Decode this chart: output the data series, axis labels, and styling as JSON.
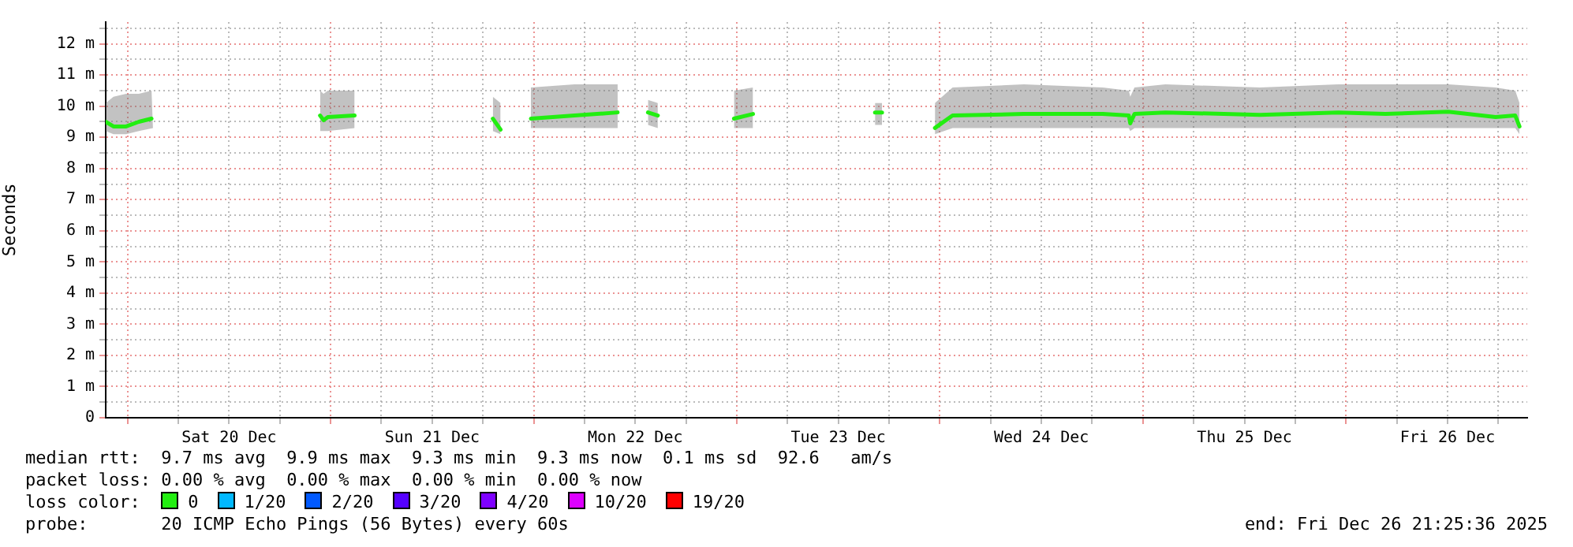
{
  "chart_data": {
    "type": "line",
    "ylabel": "Seconds",
    "legend_title": "loss color:",
    "legend": "bottom",
    "grid": true,
    "marker": "none",
    "line_style": "solid",
    "xlim": [
      "2025-12-19T21:25",
      "2025-12-26T21:25"
    ],
    "xticks": [
      {
        "value": "2025-12-20T00:00",
        "label": null
      },
      {
        "value": "2025-12-20T06:00",
        "label": null
      },
      {
        "value": "2025-12-20T12:00",
        "label": "Sat 20 Dec"
      },
      {
        "value": "2025-12-20T18:00",
        "label": null
      },
      {
        "value": "2025-12-21T00:00",
        "label": null
      },
      {
        "value": "2025-12-21T06:00",
        "label": null
      },
      {
        "value": "2025-12-21T12:00",
        "label": "Sun 21 Dec"
      },
      {
        "value": "2025-12-21T18:00",
        "label": null
      },
      {
        "value": "2025-12-22T00:00",
        "label": null
      },
      {
        "value": "2025-12-22T06:00",
        "label": null
      },
      {
        "value": "2025-12-22T12:00",
        "label": "Mon 22 Dec"
      },
      {
        "value": "2025-12-22T18:00",
        "label": null
      },
      {
        "value": "2025-12-23T00:00",
        "label": null
      },
      {
        "value": "2025-12-23T06:00",
        "label": null
      },
      {
        "value": "2025-12-23T12:00",
        "label": "Tue 23 Dec"
      },
      {
        "value": "2025-12-23T18:00",
        "label": null
      },
      {
        "value": "2025-12-24T00:00",
        "label": null
      },
      {
        "value": "2025-12-24T06:00",
        "label": null
      },
      {
        "value": "2025-12-24T12:00",
        "label": "Wed 24 Dec"
      },
      {
        "value": "2025-12-24T18:00",
        "label": null
      },
      {
        "value": "2025-12-25T00:00",
        "label": null
      },
      {
        "value": "2025-12-25T06:00",
        "label": null
      },
      {
        "value": "2025-12-25T12:00",
        "label": "Thu 25 Dec"
      },
      {
        "value": "2025-12-25T18:00",
        "label": null
      },
      {
        "value": "2025-12-26T00:00",
        "label": null
      },
      {
        "value": "2025-12-26T06:00",
        "label": null
      },
      {
        "value": "2025-12-26T12:00",
        "label": "Fri 26 Dec"
      },
      {
        "value": "2025-12-26T18:00",
        "label": null
      }
    ],
    "ylim": [
      0,
      12.7
    ],
    "yticks": [
      0,
      {
        "value": 0.5,
        "label": null
      },
      {
        "value": 1,
        "label": "1 m"
      },
      {
        "value": 1.5,
        "label": null
      },
      {
        "value": 2,
        "label": "2 m"
      },
      {
        "value": 2.5,
        "label": null
      },
      {
        "value": 3,
        "label": "3 m"
      },
      {
        "value": 3.5,
        "label": null
      },
      {
        "value": 4,
        "label": "4 m"
      },
      {
        "value": 4.5,
        "label": null
      },
      {
        "value": 5,
        "label": "5 m"
      },
      {
        "value": 5.5,
        "label": null
      },
      {
        "value": 6,
        "label": "6 m"
      },
      {
        "value": 6.5,
        "label": null
      },
      {
        "value": 7,
        "label": "7 m"
      },
      {
        "value": 7.5,
        "label": null
      },
      {
        "value": 8,
        "label": "8 m"
      },
      {
        "value": 8.5,
        "label": null
      },
      {
        "value": 9,
        "label": "9 m"
      },
      {
        "value": 9.5,
        "label": null
      },
      {
        "value": 10,
        "label": "10 m"
      },
      {
        "value": 10.5,
        "label": null
      },
      {
        "value": 11,
        "label": "11 m"
      },
      {
        "value": 11.5,
        "label": null
      },
      {
        "value": 12,
        "label": "12 m"
      },
      {
        "value": 12.5,
        "label": null
      }
    ],
    "series": [
      {
        "name": "0",
        "color": "#22ee11",
        "x": [
          "2025-12-19T21:25",
          "2025-12-19T22:20",
          "2025-12-19T23:50",
          "2025-12-20T01:20",
          "2025-12-20T02:50",
          "2025-12-20T03:00",
          "2025-12-20T12:00",
          "2025-12-20T22:45",
          "2025-12-20T23:10",
          "2025-12-20T23:40",
          "2025-12-21T02:50",
          "2025-12-21T10:00",
          "2025-12-21T19:10",
          "2025-12-21T20:05",
          "2025-12-21T22:00",
          "2025-12-21T23:40",
          "2025-12-22T04:50",
          "2025-12-22T09:55",
          "2025-12-22T12:00",
          "2025-12-22T13:30",
          "2025-12-22T14:40",
          "2025-12-22T18:00",
          "2025-12-22T23:40",
          "2025-12-23T01:55",
          "2025-12-23T08:00",
          "2025-12-23T16:20",
          "2025-12-23T17:10",
          "2025-12-23T20:00",
          "2025-12-23T23:25",
          "2025-12-24T01:30",
          "2025-12-24T09:55",
          "2025-12-24T19:15",
          "2025-12-24T22:20",
          "2025-12-24T22:30",
          "2025-12-24T23:00",
          "2025-12-25T02:40",
          "2025-12-25T13:50",
          "2025-12-25T23:05",
          "2025-12-26T04:40",
          "2025-12-26T12:05",
          "2025-12-26T17:40",
          "2025-12-26T20:00",
          "2025-12-26T20:30"
        ],
        "values": [
          9.5,
          9.35,
          9.35,
          9.5,
          9.6,
          9.6,
          null,
          9.7,
          9.55,
          9.65,
          9.7,
          null,
          9.6,
          9.25,
          null,
          9.6,
          9.7,
          9.8,
          null,
          9.8,
          9.7,
          null,
          9.6,
          9.75,
          null,
          9.8,
          9.8,
          null,
          9.3,
          9.7,
          9.75,
          9.75,
          9.7,
          9.45,
          9.75,
          9.8,
          9.72,
          9.8,
          9.75,
          9.82,
          9.65,
          9.7,
          9.35
        ],
        "lower": [
          9.2,
          9.1,
          9.1,
          9.2,
          9.3,
          9.3,
          null,
          9.2,
          9.2,
          9.2,
          9.3,
          null,
          9.2,
          9.1,
          null,
          9.3,
          9.3,
          9.3,
          null,
          9.4,
          9.3,
          null,
          9.3,
          9.3,
          null,
          9.4,
          9.4,
          null,
          9.1,
          9.3,
          9.3,
          9.3,
          9.3,
          9.2,
          9.3,
          9.3,
          9.3,
          9.3,
          9.3,
          9.3,
          9.3,
          9.3,
          9.1
        ],
        "upper": [
          10.1,
          10.3,
          10.4,
          10.4,
          10.5,
          10.5,
          null,
          10.5,
          10.4,
          10.5,
          10.5,
          null,
          10.3,
          10.1,
          null,
          10.6,
          10.7,
          10.7,
          null,
          10.2,
          10.1,
          null,
          10.5,
          10.6,
          null,
          10.1,
          10.1,
          null,
          10.1,
          10.6,
          10.7,
          10.6,
          10.5,
          10.3,
          10.6,
          10.7,
          10.6,
          10.7,
          10.7,
          10.7,
          10.6,
          10.5,
          10.1
        ]
      },
      {
        "name": "1/20",
        "color": "#00b8ff"
      },
      {
        "name": "2/20",
        "color": "#0059ff"
      },
      {
        "name": "3/20",
        "color": "#5500ff"
      },
      {
        "name": "4/20",
        "color": "#7e00ff"
      },
      {
        "name": "10/20",
        "color": "#dd00ff"
      },
      {
        "name": "19/20",
        "color": "#ff0000"
      }
    ],
    "annotations": [
      "median rtt:  9.7 ms avg  9.9 ms max  9.3 ms min  9.3 ms now  0.1 ms sd  92.6   am/s",
      "packet loss: 0.00 % avg  0.00 % max  0.00 % min  0.00 % now",
      "probe:       20 ICMP Echo Pings (56 Bytes) every 60s",
      "end: Fri Dec 26 21:25:36 2025"
    ]
  }
}
